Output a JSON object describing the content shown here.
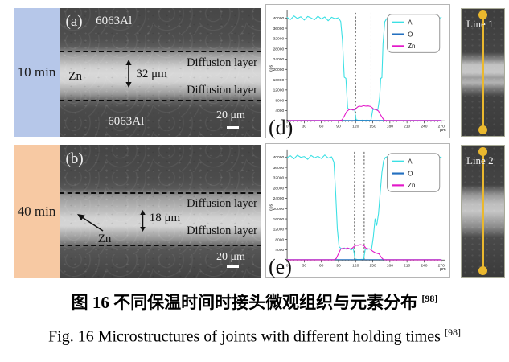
{
  "colors": {
    "row1_strip": "#b6c7e9",
    "row2_strip": "#f7c9a3",
    "al_line": "#3be0e4",
    "o_line": "#2470c0",
    "zn_line": "#e318c9",
    "scan_line": "#eab82e"
  },
  "rows": [
    {
      "time_label": "10 min",
      "panel_letter": "(a)",
      "material_top": "6063Al",
      "material_bottom": "6063Al",
      "zn_label": "Zn",
      "diffusion_top": "Diffusion layer",
      "diffusion_bottom": "Diffusion layer",
      "thickness": "32 μm",
      "scalebar": "20 μm",
      "line_label": "Line 1",
      "chart_letter": "(d)"
    },
    {
      "time_label": "40 min",
      "panel_letter": "(b)",
      "zn_label": "Zn",
      "diffusion_top": "Diffusion layer",
      "diffusion_bottom": "Diffusion layer",
      "thickness": "18 μm",
      "scalebar": "20 μm",
      "line_label": "Line 2",
      "chart_letter": "(e)"
    }
  ],
  "caption": {
    "zh": "图 16  不同保温时间时接头微观组织与元素分布",
    "zh_ref": "[98]",
    "en": "Fig. 16 Microstructures of joints with different holding times",
    "en_ref": "[98]"
  },
  "chart_data": [
    {
      "type": "line",
      "panel": "(d)",
      "xlabel": "μm",
      "ylabel": "cps",
      "xlim": [
        0,
        270
      ],
      "ylim": [
        0,
        42000
      ],
      "xticks": [
        0,
        30,
        60,
        90,
        120,
        150,
        180,
        210,
        240,
        270
      ],
      "yticks": [
        4000,
        8000,
        12000,
        16000,
        20000,
        24000,
        28000,
        32000,
        36000,
        40000
      ],
      "grid": false,
      "legend_position": "top-right",
      "dashed_lines_x": [
        120,
        147
      ],
      "series": [
        {
          "name": "Al",
          "color": "#3be0e4",
          "x": [
            0,
            6,
            12,
            18,
            24,
            30,
            36,
            42,
            48,
            54,
            60,
            66,
            72,
            78,
            84,
            90,
            94,
            97,
            100,
            103,
            106,
            109,
            112,
            115,
            118,
            121,
            124,
            128,
            132,
            136,
            140,
            144,
            147,
            150,
            153,
            156,
            159,
            162,
            164,
            166,
            168,
            171,
            174,
            178,
            184,
            190,
            196,
            202,
            208,
            214,
            220,
            226,
            232,
            238,
            244,
            250,
            256,
            262,
            270
          ],
          "y": [
            40200,
            39400,
            40800,
            39800,
            40500,
            39200,
            40600,
            40000,
            39300,
            40700,
            39600,
            40400,
            38900,
            40300,
            39700,
            40100,
            38600,
            31000,
            17000,
            16500,
            5000,
            4400,
            4600,
            4200,
            4500,
            400,
            250,
            200,
            250,
            200,
            250,
            200,
            300,
            4300,
            4500,
            4200,
            4400,
            9000,
            16500,
            16800,
            30000,
            38500,
            39600,
            40300,
            39500,
            40600,
            39900,
            40200,
            39400,
            40800,
            40000,
            39600,
            40400,
            39200,
            40500,
            39800,
            40100,
            39500,
            40200
          ]
        },
        {
          "name": "O",
          "color": "#2470c0",
          "x": [
            0,
            270
          ],
          "y": [
            150,
            150
          ]
        },
        {
          "name": "Zn",
          "color": "#e318c9",
          "x": [
            0,
            90,
            96,
            100,
            104,
            108,
            112,
            116,
            120,
            123,
            126,
            130,
            134,
            138,
            142,
            146,
            149,
            152,
            156,
            160,
            163,
            166,
            169,
            172,
            180,
            270
          ],
          "y": [
            80,
            80,
            300,
            1800,
            3500,
            4300,
            4500,
            4200,
            4600,
            5300,
            5700,
            5600,
            5900,
            5700,
            5800,
            5600,
            5100,
            4500,
            4400,
            3800,
            2600,
            1500,
            500,
            120,
            80,
            80
          ]
        }
      ]
    },
    {
      "type": "line",
      "panel": "(e)",
      "xlabel": "μm",
      "ylabel": "cps",
      "xlim": [
        0,
        270
      ],
      "ylim": [
        0,
        42000
      ],
      "xticks": [
        0,
        30,
        60,
        90,
        120,
        150,
        180,
        210,
        240,
        270
      ],
      "yticks": [
        4000,
        8000,
        12000,
        16000,
        20000,
        24000,
        28000,
        32000,
        36000,
        40000
      ],
      "grid": false,
      "legend_position": "top-right",
      "dashed_lines_x": [
        118,
        135
      ],
      "series": [
        {
          "name": "Al",
          "color": "#3be0e4",
          "x": [
            0,
            6,
            12,
            18,
            24,
            30,
            36,
            42,
            48,
            54,
            60,
            66,
            72,
            78,
            82,
            85,
            88,
            91,
            94,
            97,
            100,
            104,
            108,
            112,
            116,
            119,
            122,
            126,
            130,
            134,
            137,
            140,
            144,
            148,
            151,
            154,
            157,
            160,
            163,
            166,
            169,
            172,
            176,
            182,
            188,
            194,
            200,
            206,
            212,
            218,
            224,
            230,
            236,
            242,
            248,
            254,
            262,
            270
          ],
          "y": [
            39800,
            40500,
            39300,
            40700,
            39900,
            40200,
            39100,
            40600,
            39700,
            40300,
            39400,
            40800,
            39600,
            40100,
            38000,
            26000,
            12000,
            5200,
            4600,
            4300,
            4700,
            4200,
            4600,
            3900,
            4500,
            400,
            250,
            200,
            250,
            300,
            4300,
            4100,
            4400,
            4200,
            9000,
            16000,
            13500,
            18000,
            26000,
            34000,
            38500,
            39800,
            40200,
            39500,
            40700,
            39900,
            39300,
            40600,
            39800,
            40400,
            39200,
            40500,
            39700,
            40100,
            39400,
            40300,
            39800,
            40000
          ]
        },
        {
          "name": "O",
          "color": "#2470c0",
          "x": [
            0,
            270
          ],
          "y": [
            150,
            150
          ]
        },
        {
          "name": "Zn",
          "color": "#e318c9",
          "x": [
            0,
            82,
            86,
            90,
            94,
            98,
            102,
            106,
            110,
            114,
            118,
            121,
            124,
            128,
            132,
            135,
            138,
            142,
            146,
            150,
            154,
            158,
            161,
            164,
            167,
            170,
            175,
            270
          ],
          "y": [
            80,
            80,
            600,
            2500,
            4300,
            4600,
            4400,
            4700,
            4300,
            4600,
            5400,
            5800,
            5700,
            6000,
            5800,
            5500,
            4600,
            4400,
            4200,
            3400,
            2900,
            2600,
            2400,
            1400,
            500,
            150,
            80,
            80
          ]
        }
      ]
    }
  ]
}
